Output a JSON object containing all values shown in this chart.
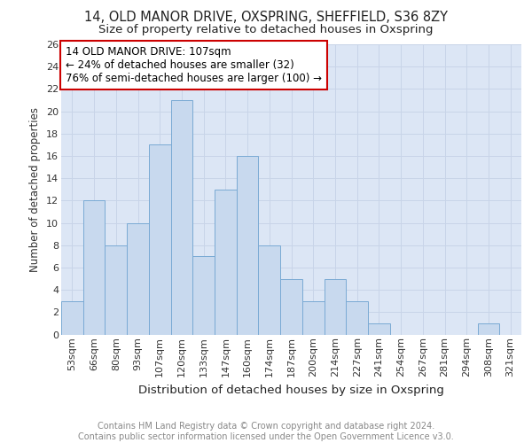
{
  "title1": "14, OLD MANOR DRIVE, OXSPRING, SHEFFIELD, S36 8ZY",
  "title2": "Size of property relative to detached houses in Oxspring",
  "xlabel": "Distribution of detached houses by size in Oxspring",
  "ylabel": "Number of detached properties",
  "categories": [
    "53sqm",
    "66sqm",
    "80sqm",
    "93sqm",
    "107sqm",
    "120sqm",
    "133sqm",
    "147sqm",
    "160sqm",
    "174sqm",
    "187sqm",
    "200sqm",
    "214sqm",
    "227sqm",
    "241sqm",
    "254sqm",
    "267sqm",
    "281sqm",
    "294sqm",
    "308sqm",
    "321sqm"
  ],
  "values": [
    3,
    12,
    8,
    10,
    17,
    21,
    7,
    13,
    16,
    8,
    5,
    3,
    5,
    3,
    1,
    0,
    0,
    0,
    0,
    1,
    0
  ],
  "bar_color": "#c8d9ee",
  "bar_edge_color": "#7aaad4",
  "highlight_index": 4,
  "annotation_box_color": "#ffffff",
  "annotation_box_edge_color": "#cc0000",
  "annotation_line1": "14 OLD MANOR DRIVE: 107sqm",
  "annotation_line2": "← 24% of detached houses are smaller (32)",
  "annotation_line3": "76% of semi-detached houses are larger (100) →",
  "ylim": [
    0,
    26
  ],
  "yticks": [
    0,
    2,
    4,
    6,
    8,
    10,
    12,
    14,
    16,
    18,
    20,
    22,
    24,
    26
  ],
  "grid_color": "#c8d4e8",
  "background_color": "#dce6f5",
  "footer_text": "Contains HM Land Registry data © Crown copyright and database right 2024.\nContains public sector information licensed under the Open Government Licence v3.0.",
  "title1_fontsize": 10.5,
  "title2_fontsize": 9.5,
  "xlabel_fontsize": 9.5,
  "ylabel_fontsize": 8.5,
  "tick_fontsize": 8,
  "annotation_fontsize": 8.5,
  "footer_fontsize": 7
}
